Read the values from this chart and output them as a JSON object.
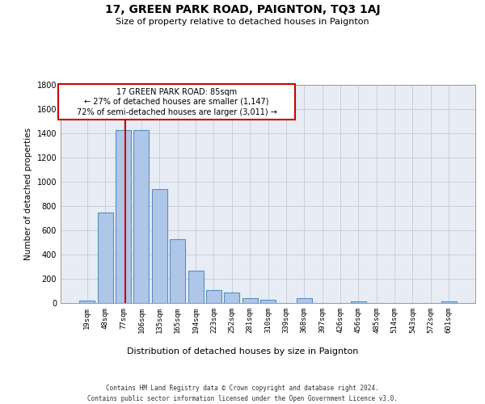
{
  "title": "17, GREEN PARK ROAD, PAIGNTON, TQ3 1AJ",
  "subtitle": "Size of property relative to detached houses in Paignton",
  "xlabel": "Distribution of detached houses by size in Paignton",
  "ylabel": "Number of detached properties",
  "categories": [
    "19sqm",
    "48sqm",
    "77sqm",
    "106sqm",
    "135sqm",
    "165sqm",
    "194sqm",
    "223sqm",
    "252sqm",
    "281sqm",
    "310sqm",
    "339sqm",
    "368sqm",
    "397sqm",
    "426sqm",
    "456sqm",
    "485sqm",
    "514sqm",
    "543sqm",
    "572sqm",
    "601sqm"
  ],
  "values": [
    22,
    745,
    1425,
    1425,
    940,
    530,
    265,
    105,
    90,
    38,
    28,
    0,
    38,
    0,
    0,
    15,
    0,
    0,
    0,
    0,
    15
  ],
  "bar_color": "#aec6e8",
  "bar_edge_color": "#5a8fc0",
  "grid_color": "#c8d0dc",
  "background_color": "#e8edf5",
  "annotation_text_line1": "17 GREEN PARK ROAD: 85sqm",
  "annotation_text_line2": "← 27% of detached houses are smaller (1,147)",
  "annotation_text_line3": "72% of semi-detached houses are larger (3,011) →",
  "annotation_box_color": "#ffffff",
  "annotation_border_color": "#cc0000",
  "vline_color": "#cc0000",
  "vline_x": 2.1,
  "ylim": [
    0,
    1800
  ],
  "yticks": [
    0,
    200,
    400,
    600,
    800,
    1000,
    1200,
    1400,
    1600,
    1800
  ],
  "footer_line1": "Contains HM Land Registry data © Crown copyright and database right 2024.",
  "footer_line2": "Contains public sector information licensed under the Open Government Licence v3.0."
}
